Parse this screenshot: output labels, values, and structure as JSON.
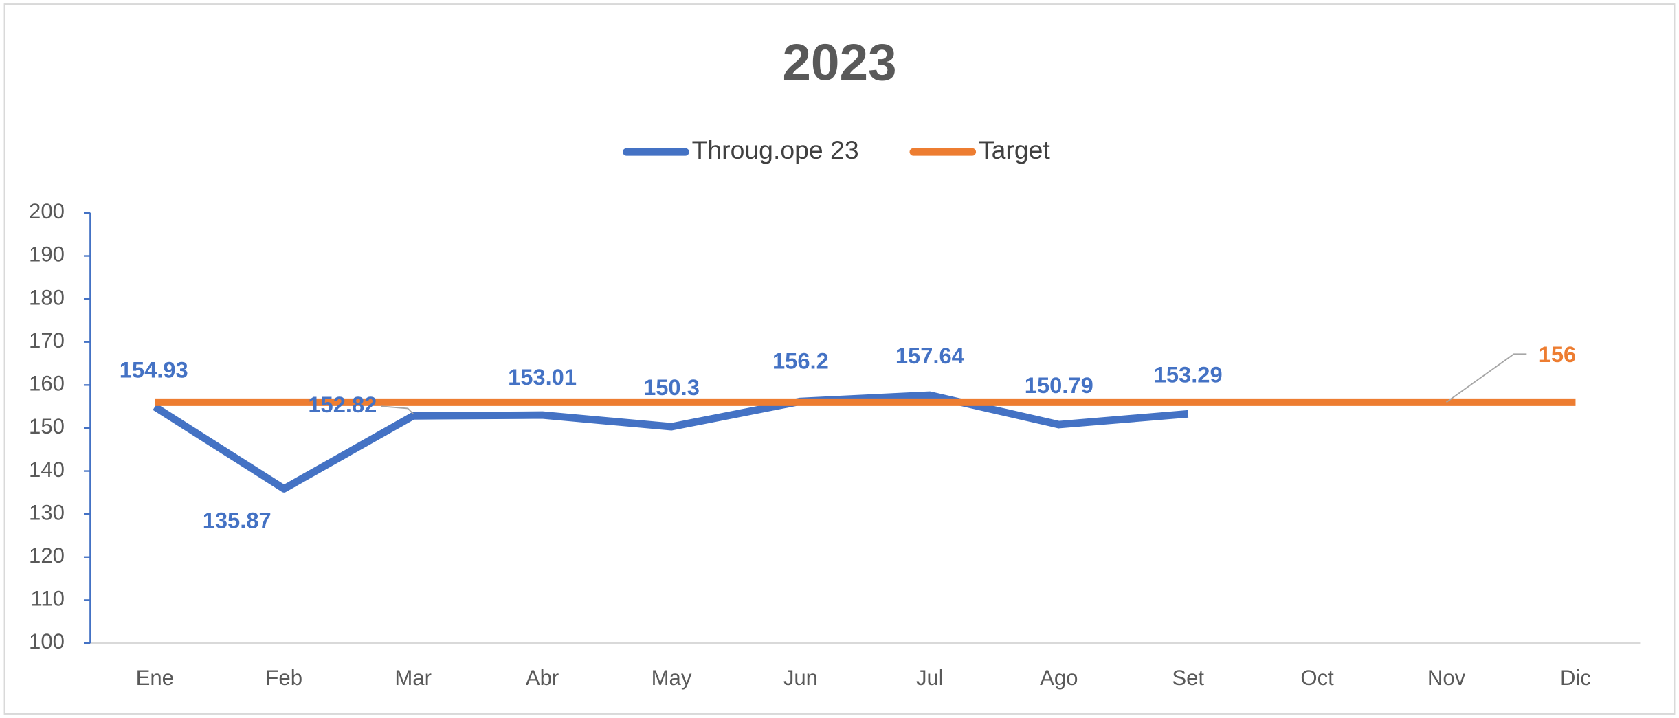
{
  "chart_data": {
    "type": "line",
    "title": "2023",
    "categories": [
      "Ene",
      "Feb",
      "Mar",
      "Abr",
      "May",
      "Jun",
      "Jul",
      "Ago",
      "Set",
      "Oct",
      "Nov",
      "Dic"
    ],
    "series": [
      {
        "name": "Throug.ope 23",
        "color": "#4472c4",
        "values": [
          154.93,
          135.87,
          152.82,
          153.01,
          150.3,
          156.2,
          157.64,
          150.79,
          153.29,
          null,
          null,
          null
        ]
      },
      {
        "name": "Target",
        "color": "#ed7d31",
        "values": [
          156,
          156,
          156,
          156,
          156,
          156,
          156,
          156,
          156,
          156,
          156,
          156
        ]
      }
    ],
    "ylim": [
      100,
      200
    ],
    "yticks": [
      100,
      110,
      120,
      130,
      140,
      150,
      160,
      170,
      180,
      190,
      200
    ],
    "legend": "top",
    "grid": false
  }
}
